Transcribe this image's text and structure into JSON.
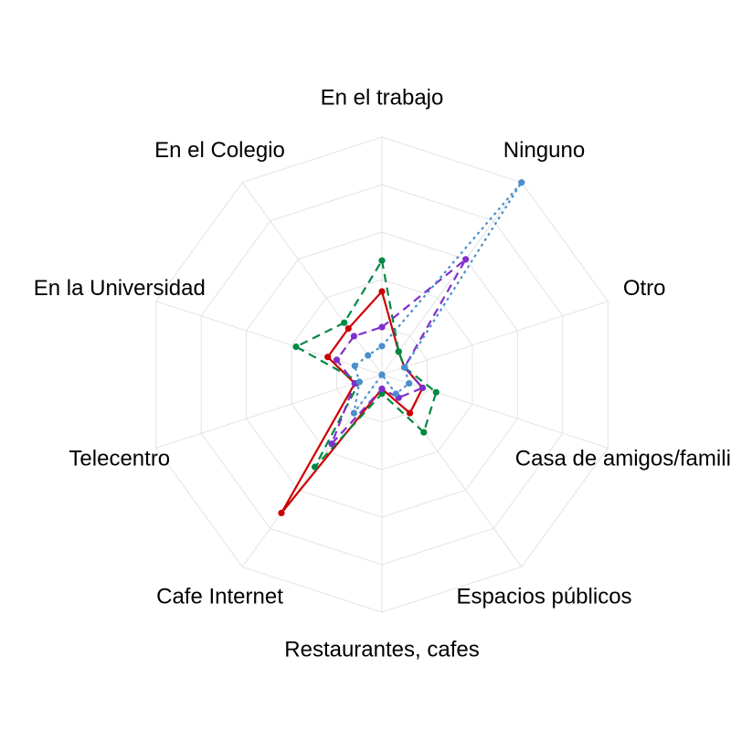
{
  "chart_data": {
    "type": "radar",
    "axes": [
      "En el trabajo",
      "Ninguno",
      "Otro",
      "Casa de amigos/familiares",
      "Espacios públicos",
      "Restaurantes, cafes",
      "Cafe Internet",
      "Telecentro",
      "En la Universidad",
      "En el Colegio"
    ],
    "range": [
      0,
      1
    ],
    "grid_levels": [
      0.2,
      0.4,
      0.6,
      0.8,
      1.0
    ],
    "grid": true,
    "legend": "none",
    "series": [
      {
        "color": "#cc0000",
        "dash": "solid",
        "values": [
          0.35,
          0.12,
          0.1,
          0.18,
          0.2,
          0.06,
          0.72,
          0.12,
          0.24,
          0.24
        ]
      },
      {
        "color": "#008844",
        "dash": "dashed",
        "values": [
          0.48,
          0.12,
          0.1,
          0.24,
          0.3,
          0.08,
          0.48,
          0.1,
          0.38,
          0.27
        ]
      },
      {
        "color": "#7f2fcc",
        "dash": "dashed",
        "values": [
          0.2,
          0.6,
          0.1,
          0.18,
          0.12,
          0.06,
          0.36,
          0.12,
          0.2,
          0.2
        ]
      },
      {
        "color": "#4a8fcc",
        "dash": "dotted",
        "values": [
          0.12,
          1.0,
          0.1,
          0.12,
          0.1,
          0.0,
          0.2,
          0.1,
          0.12,
          0.1
        ]
      }
    ]
  }
}
